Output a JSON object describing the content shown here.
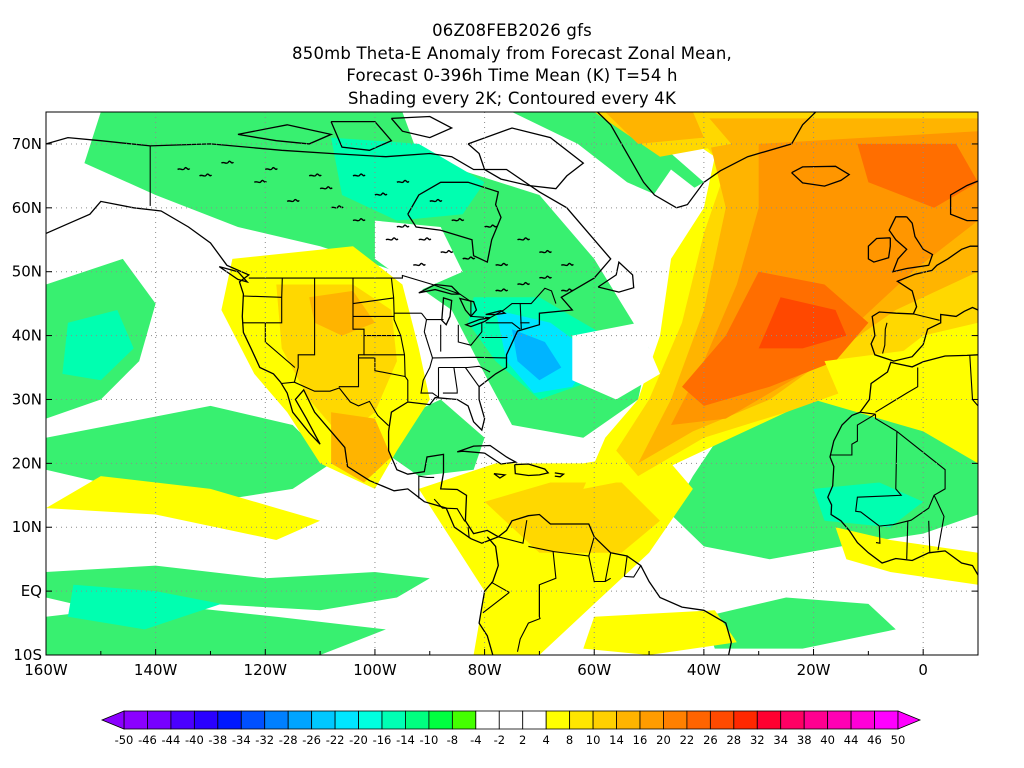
{
  "title": {
    "line1": "06Z08FEB2026 gfs",
    "line2": "850mb Theta-E Anomaly from Forecast Zonal Mean,",
    "line3": "Forecast 0-396h Time Mean (K) T=54 h",
    "line4": "Shading every 2K; Contoured every 4K"
  },
  "map": {
    "projection": "cylindrical equidistant",
    "lon_range": [
      -160,
      10
    ],
    "lat_range": [
      -10,
      75
    ],
    "gridlines": "dotted",
    "x_ticks": [
      "160W",
      "140W",
      "120W",
      "100W",
      "80W",
      "60W",
      "40W",
      "20W",
      "0"
    ],
    "y_ticks": [
      "70N",
      "60N",
      "50N",
      "40N",
      "30N",
      "20N",
      "10N",
      "EQ",
      "10S"
    ]
  },
  "colorbar": {
    "labels": [
      "-50",
      "-46",
      "-44",
      "-40",
      "-38",
      "-34",
      "-32",
      "-28",
      "-26",
      "-22",
      "-20",
      "-16",
      "-14",
      "-10",
      "-8",
      "-4",
      "-2",
      "2",
      "4",
      "8",
      "10",
      "14",
      "16",
      "20",
      "22",
      "26",
      "28",
      "32",
      "34",
      "38",
      "40",
      "44",
      "46",
      "50"
    ],
    "colors": [
      "#8b00ff",
      "#7700ff",
      "#4b00ff",
      "#2a00ff",
      "#0018ff",
      "#0050ff",
      "#0080ff",
      "#00a4ff",
      "#00c8ff",
      "#00e6ff",
      "#00ffe0",
      "#00ffb4",
      "#00ff80",
      "#00ff40",
      "#44ff00",
      "#ffffff",
      "#ffffff",
      "#ffffff",
      "#ffff00",
      "#ffe600",
      "#ffd000",
      "#ffb400",
      "#ff9c00",
      "#ff8000",
      "#ff6400",
      "#ff4a00",
      "#ff2800",
      "#ff0030",
      "#ff0064",
      "#ff0090",
      "#ff00b4",
      "#ff00d8",
      "#ff00ff"
    ]
  },
  "field_colors": {
    "cold_strong": "#00b4ff",
    "cold_mid": "#00e6ff",
    "cold_light": "#00ffb0",
    "cool": "#38f070",
    "neutral": "#ffffff",
    "warm_light": "#ffff00",
    "warm": "#ffd800",
    "warm_mid": "#ffb400",
    "hot": "#ff9600",
    "hotter": "#ff6e00",
    "hottest": "#ff4800"
  }
}
